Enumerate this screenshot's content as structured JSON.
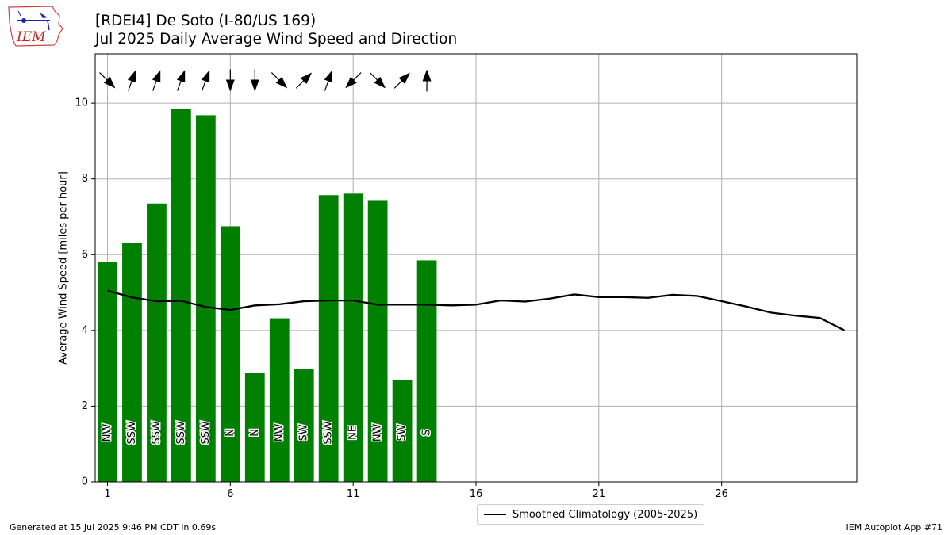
{
  "header": {
    "title_line1": "[RDEI4] De Soto (I-80/US 169)",
    "title_line2": "Jul 2025 Daily Average Wind Speed and Direction",
    "logo_text": "IEM"
  },
  "footer": {
    "generated": "Generated at 15 Jul 2025 9:46 PM CDT in 0.69s",
    "app": "IEM Autoplot App #71"
  },
  "legend": {
    "climatology_label": "Smoothed Climatology (2005-2025)"
  },
  "colors": {
    "bar": "#008000",
    "climo_line": "#000000",
    "grid": "#b0b0b0",
    "arrow": "#000000"
  },
  "chart_data": {
    "type": "bar",
    "ylabel": "Average Wind Speed [miles per hour]",
    "xlabel": "",
    "xlim": [
      0.5,
      31.5
    ],
    "ylim": [
      0,
      11.3
    ],
    "xticks": [
      1,
      6,
      11,
      16,
      21,
      26
    ],
    "yticks": [
      0,
      2,
      4,
      6,
      8,
      10
    ],
    "grid": true,
    "legend_position": "bottom-center",
    "days": [
      1,
      2,
      3,
      4,
      5,
      6,
      7,
      8,
      9,
      10,
      11,
      12,
      13,
      14
    ],
    "speeds": [
      5.8,
      6.3,
      7.35,
      9.85,
      9.68,
      6.75,
      2.88,
      4.32,
      2.99,
      7.57,
      7.61,
      7.44,
      2.7,
      5.85
    ],
    "direction_labels": [
      "NW",
      "SSW",
      "SSW",
      "SSW",
      "SSW",
      "N",
      "N",
      "NW",
      "SW",
      "SSW",
      "NE",
      "NW",
      "SW",
      "S"
    ],
    "wind_from_degrees": [
      315,
      200,
      200,
      200,
      200,
      0,
      0,
      315,
      225,
      200,
      45,
      315,
      225,
      180
    ],
    "climatology": {
      "name": "Smoothed Climatology (2005-2025)",
      "x": [
        1,
        2,
        3,
        4,
        5,
        6,
        7,
        8,
        9,
        10,
        11,
        12,
        13,
        14,
        15,
        16,
        17,
        18,
        19,
        20,
        21,
        22,
        23,
        24,
        25,
        26,
        27,
        28,
        29,
        30,
        31
      ],
      "values": [
        5.05,
        4.87,
        4.77,
        4.78,
        4.62,
        4.54,
        4.66,
        4.69,
        4.77,
        4.79,
        4.79,
        4.68,
        4.68,
        4.68,
        4.66,
        4.68,
        4.79,
        4.76,
        4.84,
        4.95,
        4.88,
        4.88,
        4.86,
        4.94,
        4.91,
        4.77,
        4.63,
        4.47,
        4.39,
        4.33,
        4.0
      ]
    }
  }
}
